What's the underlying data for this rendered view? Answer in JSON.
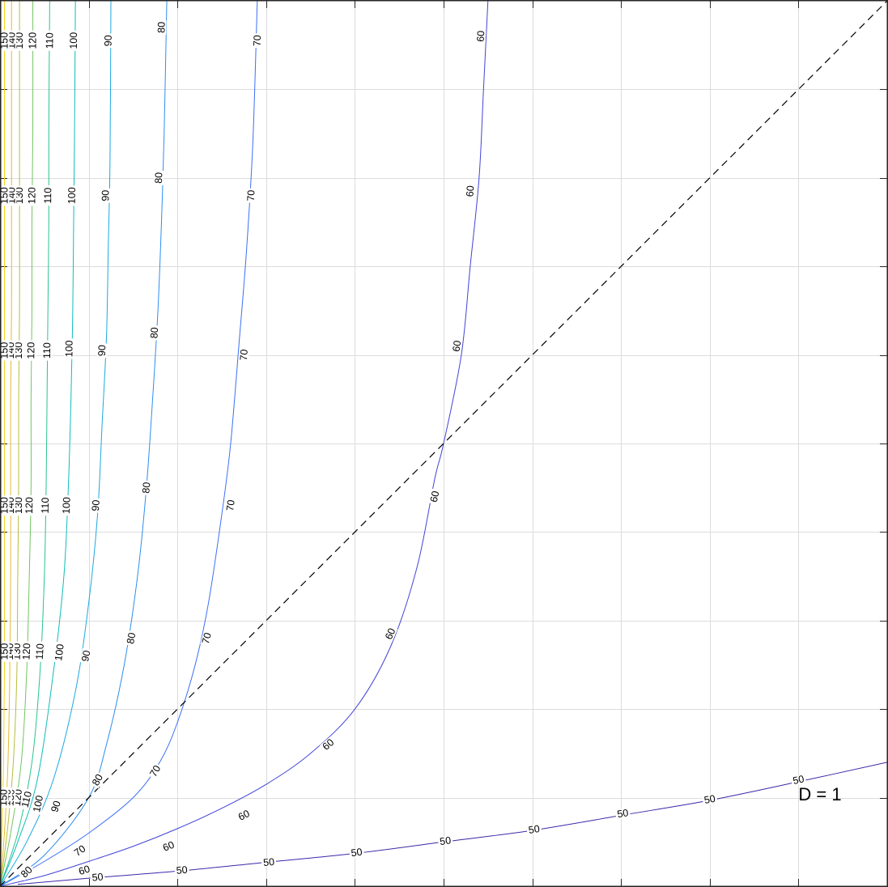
{
  "chart_data": {
    "type": "contour",
    "title": "",
    "xlabel": "",
    "ylabel": "",
    "xlim": [
      0,
      10
    ],
    "ylim": [
      0,
      10
    ],
    "grid": true,
    "ticks_every": 1,
    "colormap": "parula",
    "colors": {
      "50": "#3e26a8",
      "60": "#4044d6",
      "70": "#3c6ff5",
      "80": "#2c8ef0",
      "90": "#1ca8e0",
      "100": "#0fbcbb",
      "110": "#28c38f",
      "120": "#72c561",
      "130": "#b7bd3d",
      "140": "#e6b92f",
      "150": "#f7d41d"
    },
    "levels": [
      {
        "level": 50,
        "label": "50",
        "points": [
          [
            0.2,
            0.02
          ],
          [
            1,
            0.09
          ],
          [
            2,
            0.17
          ],
          [
            3,
            0.27
          ],
          [
            4,
            0.37
          ],
          [
            5,
            0.5
          ],
          [
            6,
            0.63
          ],
          [
            7,
            0.8
          ],
          [
            8,
            0.97
          ],
          [
            9,
            1.18
          ],
          [
            10,
            1.4
          ]
        ],
        "label_positions": [
          [
            1.1,
            0.1
          ],
          [
            2.05,
            0.18
          ],
          [
            3.03,
            0.27
          ],
          [
            4.02,
            0.38
          ],
          [
            5.02,
            0.51
          ],
          [
            6.02,
            0.64
          ],
          [
            7.02,
            0.82
          ],
          [
            8.0,
            0.98
          ],
          [
            9.0,
            1.2
          ]
        ]
      },
      {
        "level": 60,
        "label": "60",
        "points": [
          [
            0,
            0
          ],
          [
            0.5,
            0.12
          ],
          [
            1,
            0.28
          ],
          [
            1.5,
            0.45
          ],
          [
            2,
            0.65
          ],
          [
            2.5,
            0.88
          ],
          [
            3,
            1.15
          ],
          [
            3.5,
            1.5
          ],
          [
            4,
            2.0
          ],
          [
            4.4,
            2.7
          ],
          [
            4.7,
            3.6
          ],
          [
            4.9,
            4.6
          ],
          [
            5,
            5
          ],
          [
            5.2,
            6.0
          ],
          [
            5.3,
            7.0
          ],
          [
            5.4,
            8.0
          ],
          [
            5.45,
            9.0
          ],
          [
            5.5,
            10
          ]
        ],
        "label_positions": [
          [
            0.95,
            0.18
          ],
          [
            1.9,
            0.45
          ],
          [
            2.75,
            0.8
          ],
          [
            3.7,
            1.6
          ],
          [
            4.4,
            2.85
          ],
          [
            4.9,
            4.4
          ],
          [
            5.15,
            6.1
          ],
          [
            5.3,
            7.85
          ],
          [
            5.42,
            9.6
          ]
        ]
      },
      {
        "level": 70,
        "label": "70",
        "points": [
          [
            0,
            0
          ],
          [
            0.5,
            0.28
          ],
          [
            1,
            0.6
          ],
          [
            1.5,
            1.0
          ],
          [
            1.8,
            1.4
          ],
          [
            2,
            1.85
          ],
          [
            2.2,
            2.5
          ],
          [
            2.35,
            3.2
          ],
          [
            2.5,
            4.2
          ],
          [
            2.6,
            5.0
          ],
          [
            2.7,
            6.2
          ],
          [
            2.78,
            7.2
          ],
          [
            2.85,
            8.4
          ],
          [
            2.9,
            10
          ]
        ],
        "label_positions": [
          [
            0.9,
            0.4
          ],
          [
            1.75,
            1.3
          ],
          [
            2.33,
            2.8
          ],
          [
            2.6,
            4.3
          ],
          [
            2.75,
            6.0
          ],
          [
            2.83,
            7.8
          ],
          [
            2.9,
            9.55
          ]
        ]
      },
      {
        "level": 80,
        "label": "80",
        "points": [
          [
            0,
            0
          ],
          [
            0.5,
            0.35
          ],
          [
            1,
            1
          ],
          [
            1.2,
            1.6
          ],
          [
            1.4,
            2.5
          ],
          [
            1.55,
            3.5
          ],
          [
            1.65,
            4.5
          ],
          [
            1.72,
            5.5
          ],
          [
            1.78,
            6.5
          ],
          [
            1.82,
            7.5
          ],
          [
            1.85,
            8.5
          ],
          [
            1.88,
            10
          ]
        ],
        "label_positions": [
          [
            0.3,
            0.16
          ],
          [
            1.1,
            1.2
          ],
          [
            1.48,
            2.8
          ],
          [
            1.65,
            4.5
          ],
          [
            1.74,
            6.25
          ],
          [
            1.79,
            8.0
          ],
          [
            1.82,
            9.7
          ]
        ]
      },
      {
        "level": 90,
        "label": "90",
        "points": [
          [
            0,
            0
          ],
          [
            0.3,
            0.5
          ],
          [
            0.6,
            1.2
          ],
          [
            0.85,
            2.2
          ],
          [
            1,
            3.2
          ],
          [
            1.1,
            4.2
          ],
          [
            1.15,
            5.2
          ],
          [
            1.2,
            6.2
          ],
          [
            1.22,
            7.2
          ],
          [
            1.24,
            8.2
          ],
          [
            1.25,
            10
          ]
        ],
        "label_positions": [
          [
            0.63,
            0.9
          ],
          [
            0.97,
            2.6
          ],
          [
            1.08,
            4.3
          ],
          [
            1.15,
            6.05
          ],
          [
            1.19,
            7.8
          ],
          [
            1.22,
            9.55
          ]
        ]
      },
      {
        "level": 100,
        "label": "100",
        "points": [
          [
            0,
            0
          ],
          [
            0.2,
            0.5
          ],
          [
            0.42,
            1.2
          ],
          [
            0.6,
            2.4
          ],
          [
            0.72,
            3.5
          ],
          [
            0.77,
            4.5
          ],
          [
            0.8,
            5.5
          ],
          [
            0.82,
            6.5
          ],
          [
            0.83,
            7.5
          ],
          [
            0.84,
            8.5
          ],
          [
            0.85,
            10
          ]
        ],
        "label_positions": [
          [
            0.43,
            0.93
          ],
          [
            0.67,
            2.64
          ],
          [
            0.75,
            4.3
          ],
          [
            0.78,
            6.07
          ],
          [
            0.81,
            7.8
          ],
          [
            0.83,
            9.55
          ]
        ]
      },
      {
        "level": 110,
        "label": "110",
        "points": [
          [
            0,
            0
          ],
          [
            0.2,
            0.6
          ],
          [
            0.36,
            1.4
          ],
          [
            0.45,
            2.4
          ],
          [
            0.5,
            3.5
          ],
          [
            0.52,
            4.5
          ],
          [
            0.53,
            5.5
          ],
          [
            0.54,
            6.5
          ],
          [
            0.55,
            7.5
          ],
          [
            0.55,
            8.5
          ],
          [
            0.56,
            10
          ]
        ],
        "label_positions": [
          [
            0.3,
            0.98
          ],
          [
            0.45,
            2.65
          ],
          [
            0.51,
            4.3
          ],
          [
            0.53,
            6.05
          ],
          [
            0.54,
            7.8
          ],
          [
            0.56,
            9.55
          ]
        ]
      },
      {
        "level": 120,
        "label": "120",
        "points": [
          [
            0,
            0
          ],
          [
            0.12,
            0.6
          ],
          [
            0.24,
            1.4
          ],
          [
            0.3,
            2.4
          ],
          [
            0.33,
            3.5
          ],
          [
            0.35,
            4.5
          ],
          [
            0.35,
            5.5
          ],
          [
            0.36,
            6.5
          ],
          [
            0.36,
            7.5
          ],
          [
            0.37,
            8.5
          ],
          [
            0.37,
            10
          ]
        ],
        "label_positions": [
          [
            0.2,
            1.0
          ],
          [
            0.3,
            2.65
          ],
          [
            0.33,
            4.3
          ],
          [
            0.35,
            6.05
          ],
          [
            0.36,
            7.8
          ],
          [
            0.37,
            9.55
          ]
        ]
      },
      {
        "level": 130,
        "label": "130",
        "points": [
          [
            0,
            0
          ],
          [
            0.08,
            0.6
          ],
          [
            0.15,
            1.4
          ],
          [
            0.19,
            2.4
          ],
          [
            0.2,
            3.5
          ],
          [
            0.21,
            4.5
          ],
          [
            0.21,
            5.5
          ],
          [
            0.22,
            6.5
          ],
          [
            0.22,
            7.5
          ],
          [
            0.22,
            8.5
          ],
          [
            0.22,
            10
          ]
        ],
        "label_positions": [
          [
            0.12,
            1.0
          ],
          [
            0.19,
            2.65
          ],
          [
            0.21,
            4.3
          ],
          [
            0.21,
            6.05
          ],
          [
            0.22,
            7.8
          ],
          [
            0.22,
            9.55
          ]
        ]
      },
      {
        "level": 140,
        "label": "140",
        "points": [
          [
            0,
            0
          ],
          [
            0.05,
            0.6
          ],
          [
            0.09,
            1.4
          ],
          [
            0.11,
            2.4
          ],
          [
            0.12,
            3.5
          ],
          [
            0.12,
            4.5
          ],
          [
            0.12,
            5.5
          ],
          [
            0.13,
            6.5
          ],
          [
            0.13,
            7.5
          ],
          [
            0.13,
            8.5
          ],
          [
            0.13,
            10
          ]
        ],
        "label_positions": [
          [
            0.08,
            1.0
          ],
          [
            0.11,
            2.65
          ],
          [
            0.12,
            4.3
          ],
          [
            0.12,
            6.05
          ],
          [
            0.13,
            7.8
          ],
          [
            0.13,
            9.55
          ]
        ]
      },
      {
        "level": 150,
        "label": "150",
        "points": [
          [
            0,
            0
          ],
          [
            0.02,
            0.6
          ],
          [
            0.04,
            1.4
          ],
          [
            0.05,
            2.4
          ],
          [
            0.05,
            3.5
          ],
          [
            0.05,
            4.5
          ],
          [
            0.05,
            5.5
          ],
          [
            0.05,
            6.5
          ],
          [
            0.05,
            7.5
          ],
          [
            0.05,
            8.5
          ],
          [
            0.05,
            10
          ]
        ],
        "label_positions": [
          [
            0.04,
            1.0
          ],
          [
            0.05,
            2.65
          ],
          [
            0.05,
            4.3
          ],
          [
            0.05,
            6.05
          ],
          [
            0.05,
            7.8
          ],
          [
            0.05,
            9.55
          ]
        ]
      }
    ],
    "reference_line": {
      "style": "dashed",
      "from": [
        0,
        0
      ],
      "to": [
        10,
        10
      ]
    },
    "annotations": [
      {
        "text": "D = 1",
        "x": 9.0,
        "y": 0.97
      }
    ]
  }
}
